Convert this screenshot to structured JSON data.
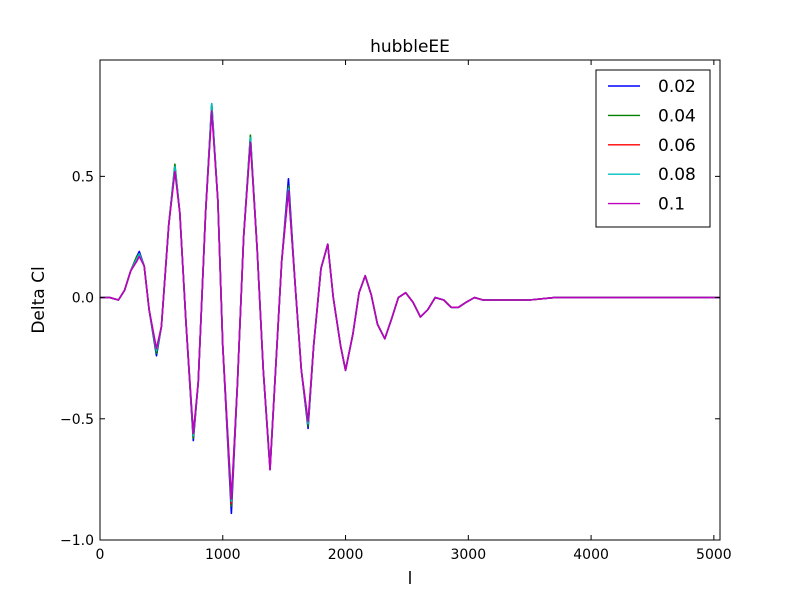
{
  "chart_data": {
    "type": "line",
    "title": "hubbleEE",
    "xlabel": "l",
    "ylabel": "Delta Cl",
    "xlim": [
      0,
      5050
    ],
    "ylim": [
      -1.0,
      0.98
    ],
    "xticks": [
      0,
      1000,
      2000,
      3000,
      4000,
      5000
    ],
    "xtick_labels": [
      "0",
      "1000",
      "2000",
      "3000",
      "4000",
      "5000"
    ],
    "yticks": [
      -1.0,
      -0.5,
      0.0,
      0.5
    ],
    "ytick_labels": [
      "−1.0",
      "−0.5",
      "0.0",
      "0.5"
    ],
    "grid": false,
    "legend_position": "top-right",
    "x": [
      0,
      80,
      150,
      200,
      250,
      300,
      320,
      360,
      400,
      460,
      500,
      560,
      610,
      650,
      700,
      760,
      800,
      860,
      910,
      960,
      1000,
      1070,
      1120,
      1170,
      1225,
      1280,
      1330,
      1385,
      1430,
      1480,
      1535,
      1590,
      1640,
      1695,
      1740,
      1800,
      1855,
      1900,
      1960,
      2000,
      2060,
      2110,
      2160,
      2210,
      2260,
      2320,
      2380,
      2430,
      2490,
      2550,
      2610,
      2670,
      2730,
      2800,
      2860,
      2920,
      2980,
      3050,
      3120,
      3200,
      3300,
      3400,
      3500,
      3700,
      3900,
      4200,
      4500,
      4800,
      5050
    ],
    "series": [
      {
        "name": "0.02",
        "color": "#0000ff",
        "y": [
          0.0,
          0.0,
          -0.01,
          0.03,
          0.11,
          0.17,
          0.19,
          0.13,
          -0.05,
          -0.24,
          -0.12,
          0.3,
          0.54,
          0.35,
          -0.1,
          -0.59,
          -0.35,
          0.35,
          0.79,
          0.4,
          -0.2,
          -0.89,
          -0.35,
          0.25,
          0.66,
          0.2,
          -0.3,
          -0.71,
          -0.3,
          0.15,
          0.49,
          0.05,
          -0.3,
          -0.54,
          -0.2,
          0.12,
          0.22,
          0.0,
          -0.2,
          -0.3,
          -0.15,
          0.02,
          0.09,
          0.01,
          -0.11,
          -0.17,
          -0.08,
          0.0,
          0.02,
          -0.02,
          -0.08,
          -0.05,
          0.0,
          -0.01,
          -0.04,
          -0.04,
          -0.02,
          0.0,
          -0.01,
          -0.01,
          -0.01,
          -0.01,
          -0.01,
          0.0,
          0.0,
          0.0,
          0.0,
          0.0,
          0.0
        ]
      },
      {
        "name": "0.04",
        "color": "#008000",
        "y": [
          0.0,
          0.0,
          -0.01,
          0.03,
          0.11,
          0.17,
          0.18,
          0.13,
          -0.05,
          -0.23,
          -0.12,
          0.3,
          0.55,
          0.35,
          -0.1,
          -0.58,
          -0.35,
          0.35,
          0.8,
          0.4,
          -0.2,
          -0.86,
          -0.35,
          0.25,
          0.67,
          0.2,
          -0.3,
          -0.7,
          -0.3,
          0.15,
          0.46,
          0.05,
          -0.3,
          -0.53,
          -0.2,
          0.12,
          0.22,
          0.0,
          -0.2,
          -0.3,
          -0.15,
          0.02,
          0.09,
          0.01,
          -0.11,
          -0.17,
          -0.08,
          0.0,
          0.02,
          -0.02,
          -0.08,
          -0.05,
          0.0,
          -0.01,
          -0.04,
          -0.04,
          -0.02,
          0.0,
          -0.01,
          -0.01,
          -0.01,
          -0.01,
          -0.01,
          0.0,
          0.0,
          0.0,
          0.0,
          0.0,
          0.0
        ]
      },
      {
        "name": "0.06",
        "color": "#ff0000",
        "y": [
          0.0,
          0.0,
          -0.01,
          0.03,
          0.11,
          0.16,
          0.18,
          0.13,
          -0.05,
          -0.22,
          -0.12,
          0.3,
          0.53,
          0.35,
          -0.1,
          -0.57,
          -0.35,
          0.35,
          0.78,
          0.4,
          -0.2,
          -0.85,
          -0.35,
          0.25,
          0.65,
          0.2,
          -0.3,
          -0.7,
          -0.3,
          0.15,
          0.45,
          0.05,
          -0.3,
          -0.52,
          -0.2,
          0.12,
          0.22,
          0.0,
          -0.2,
          -0.3,
          -0.15,
          0.02,
          0.09,
          0.01,
          -0.11,
          -0.17,
          -0.08,
          0.0,
          0.02,
          -0.02,
          -0.08,
          -0.05,
          0.0,
          -0.01,
          -0.04,
          -0.04,
          -0.02,
          0.0,
          -0.01,
          -0.01,
          -0.01,
          -0.01,
          -0.01,
          0.0,
          0.0,
          0.0,
          0.0,
          0.0,
          0.0
        ]
      },
      {
        "name": "0.08",
        "color": "#00bfbf",
        "y": [
          0.0,
          0.0,
          -0.01,
          0.03,
          0.11,
          0.16,
          0.18,
          0.13,
          -0.05,
          -0.22,
          -0.12,
          0.3,
          0.54,
          0.35,
          -0.1,
          -0.57,
          -0.35,
          0.35,
          0.8,
          0.4,
          -0.2,
          -0.84,
          -0.35,
          0.25,
          0.66,
          0.2,
          -0.3,
          -0.7,
          -0.3,
          0.15,
          0.45,
          0.05,
          -0.3,
          -0.52,
          -0.2,
          0.12,
          0.22,
          0.0,
          -0.2,
          -0.3,
          -0.15,
          0.02,
          0.09,
          0.01,
          -0.11,
          -0.17,
          -0.08,
          0.0,
          0.02,
          -0.02,
          -0.08,
          -0.05,
          0.0,
          -0.01,
          -0.04,
          -0.04,
          -0.02,
          0.0,
          -0.01,
          -0.01,
          -0.01,
          -0.01,
          -0.01,
          0.0,
          0.0,
          0.0,
          0.0,
          0.0,
          0.0
        ]
      },
      {
        "name": "0.1",
        "color": "#bf00bf",
        "y": [
          0.0,
          0.0,
          -0.01,
          0.03,
          0.11,
          0.15,
          0.17,
          0.13,
          -0.05,
          -0.21,
          -0.12,
          0.3,
          0.52,
          0.35,
          -0.1,
          -0.56,
          -0.35,
          0.35,
          0.77,
          0.4,
          -0.2,
          -0.83,
          -0.35,
          0.25,
          0.64,
          0.2,
          -0.3,
          -0.71,
          -0.3,
          0.15,
          0.44,
          0.05,
          -0.3,
          -0.51,
          -0.2,
          0.12,
          0.22,
          0.0,
          -0.2,
          -0.3,
          -0.15,
          0.02,
          0.09,
          0.01,
          -0.11,
          -0.17,
          -0.08,
          0.0,
          0.02,
          -0.02,
          -0.08,
          -0.05,
          0.0,
          -0.01,
          -0.04,
          -0.04,
          -0.02,
          0.0,
          -0.01,
          -0.01,
          -0.01,
          -0.01,
          -0.01,
          0.0,
          0.0,
          0.0,
          0.0,
          0.0,
          0.0
        ]
      }
    ]
  }
}
